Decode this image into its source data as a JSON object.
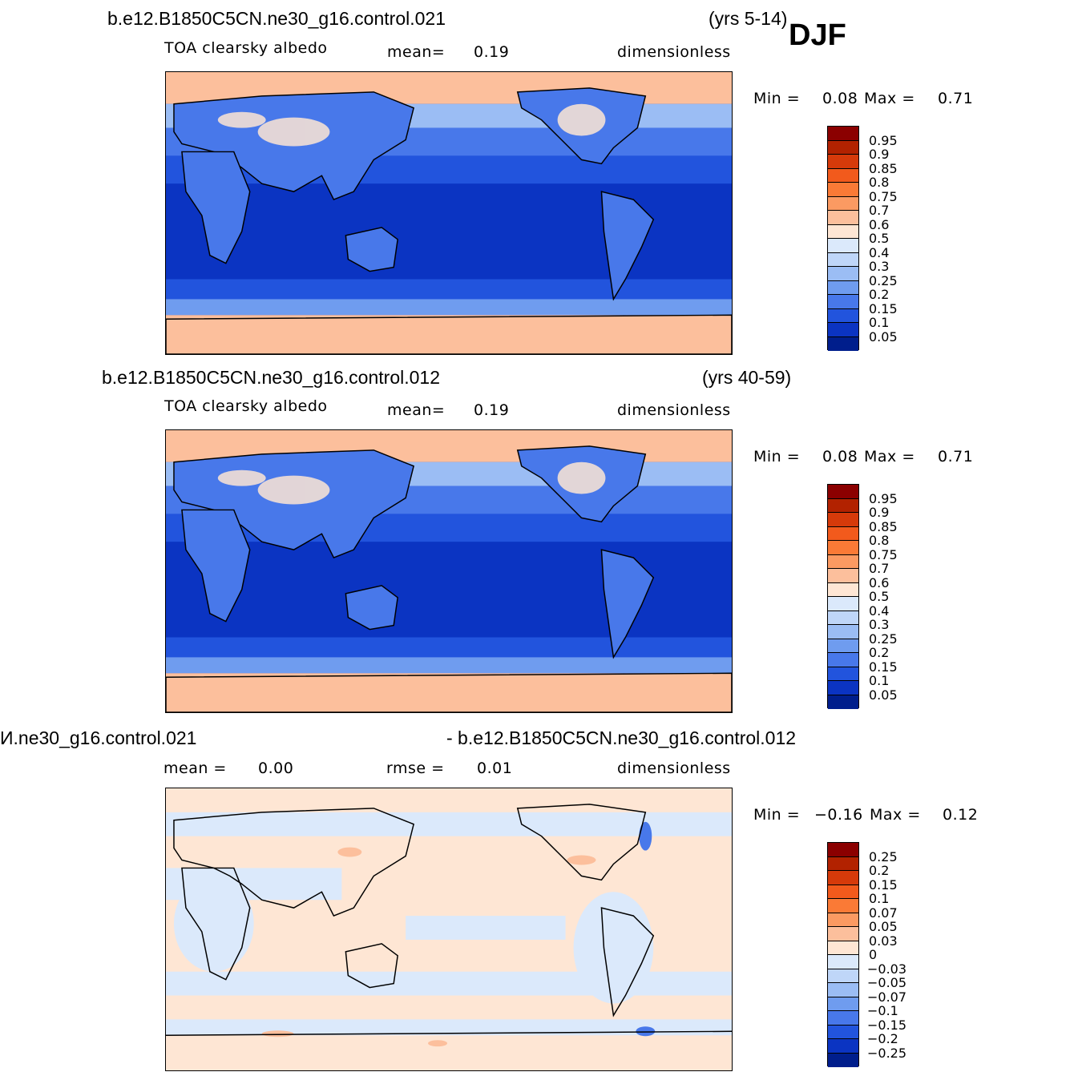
{
  "season": "DJF",
  "panels": [
    {
      "case": "b.e12.B1850C5CN.ne30_g16.control.021",
      "years": "(yrs 5-14)",
      "variable": "TOA  clearsky  albedo",
      "mean_label": "mean=",
      "mean_value": "0.19",
      "units": "dimensionless",
      "min_label": "Min  =",
      "min_value": "0.08",
      "max_label": "Max  =",
      "max_value": "0.71"
    },
    {
      "case": "b.e12.B1850C5CN.ne30_g16.control.012",
      "years": "(yrs 40-59)",
      "variable": "TOA  clearsky  albedo",
      "mean_label": "mean=",
      "mean_value": "0.19",
      "units": "dimensionless",
      "min_label": "Min  =",
      "min_value": "0.08",
      "max_label": "Max  =",
      "max_value": "0.71"
    },
    {
      "case_left": "И.ne30_g16.control.021",
      "case_right": "- b.e12.B1850C5CN.ne30_g16.control.012",
      "mean_label": "mean  =",
      "mean_value": "0.00",
      "rmse_label": "rmse  =",
      "rmse_value": "0.01",
      "units": "dimensionless",
      "min_label": "Min  =",
      "min_value": "−0.16",
      "max_label": "Max  =",
      "max_value": "0.12"
    }
  ],
  "colorbars": {
    "absolute": {
      "labels": [
        "0.95",
        "0.9",
        "0.85",
        "0.8",
        "0.75",
        "0.7",
        "0.6",
        "0.5",
        "0.4",
        "0.3",
        "0.25",
        "0.2",
        "0.15",
        "0.1",
        "0.05"
      ],
      "colors": [
        "#8b0000",
        "#b22200",
        "#d63a0a",
        "#f25a1c",
        "#fa7a36",
        "#fb9a62",
        "#fcbf9c",
        "#fee6d4",
        "#dbe9fb",
        "#bfd6f8",
        "#9bbdf4",
        "#6f9cef",
        "#4878ea",
        "#2254dd",
        "#0b34c2",
        "#001e8c"
      ]
    },
    "difference": {
      "labels": [
        "0.25",
        "0.2",
        "0.15",
        "0.1",
        "0.07",
        "0.05",
        "0.03",
        "0",
        "−0.03",
        "−0.05",
        "−0.07",
        "−0.1",
        "−0.15",
        "−0.2",
        "−0.25"
      ],
      "colors": [
        "#8b0000",
        "#b22200",
        "#d63a0a",
        "#f25a1c",
        "#fa7a36",
        "#fb9a62",
        "#fcbf9c",
        "#fee6d4",
        "#dbe9fb",
        "#bfd6f8",
        "#9bbdf4",
        "#6f9cef",
        "#4878ea",
        "#2254dd",
        "#0b34c2",
        "#001e8c"
      ]
    }
  }
}
